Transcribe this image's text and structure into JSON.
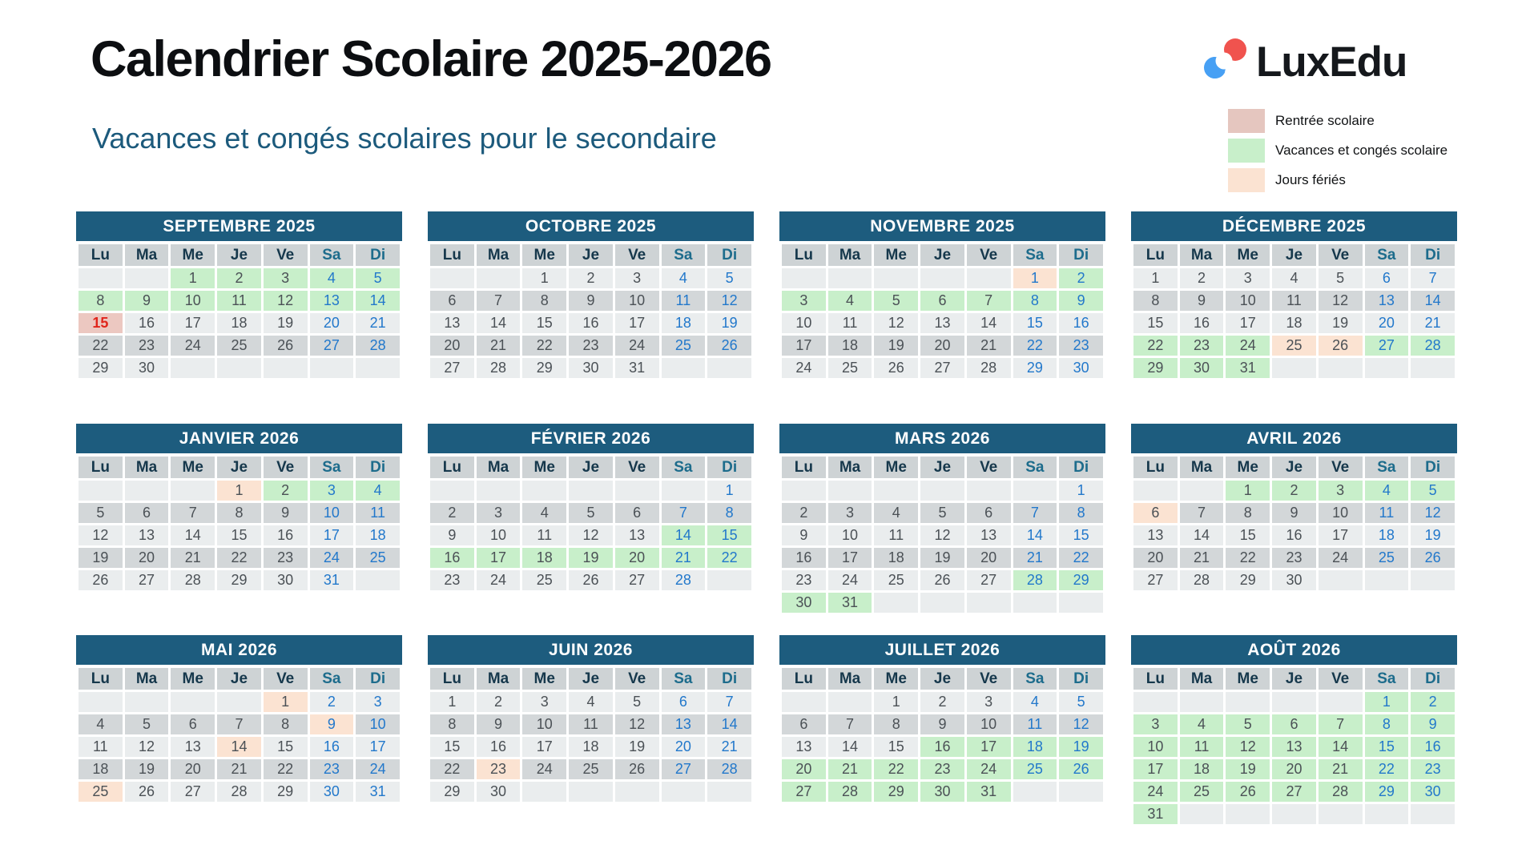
{
  "page": {
    "title": "Calendrier Scolaire 2025-2026",
    "subtitle": "Vacances et congés scolaires pour le secondaire",
    "brand": "LuxEdu"
  },
  "legend": [
    {
      "key": "rentree",
      "label": "Rentrée scolaire",
      "color": "#e5c6bf"
    },
    {
      "key": "vacances",
      "label": "Vacances et congés scolaire",
      "color": "#c8efca"
    },
    {
      "key": "ferie",
      "label": "Jours fériés",
      "color": "#fbe3d2"
    }
  ],
  "colors": {
    "month_header_bg": "#1d5c7e",
    "month_header_text": "#ffffff",
    "day_header_bg": "#ced3d5",
    "day_header_text": "#16384c",
    "day_header_weekend_text": "#1d6c8c",
    "row_light": "#eaedee",
    "row_dark": "#d3d7d9",
    "weekday_number": "#4b5156",
    "weekend_number": "#2278cb",
    "vacances_bg": "#c8efca",
    "ferie_bg": "#fbe3d2",
    "rentree_bg": "#ecc8c1",
    "rentree_text": "#e0251b",
    "subtitle_color": "#1c5a7c",
    "logo_red": "#f0534e",
    "logo_blue": "#47a0f4"
  },
  "day_headers": [
    "Lu",
    "Ma",
    "Me",
    "Je",
    "Ve",
    "Sa",
    "Di"
  ],
  "months": [
    {
      "name": "SEPTEMBRE 2025",
      "rows": [
        [
          "",
          "",
          "1v",
          "2v",
          "3v",
          "4v",
          "5v"
        ],
        [
          "8v",
          "9v",
          "10v",
          "11v",
          "12v",
          "13v",
          "14v"
        ],
        [
          "15r",
          "16",
          "17",
          "18",
          "19",
          "20",
          "21"
        ],
        [
          "22",
          "23",
          "24",
          "25",
          "26",
          "27",
          "28"
        ],
        [
          "29",
          "30",
          "",
          "",
          "",
          "",
          ""
        ]
      ]
    },
    {
      "name": "OCTOBRE 2025",
      "rows": [
        [
          "",
          "",
          "1",
          "2",
          "3",
          "4",
          "5"
        ],
        [
          "6",
          "7",
          "8",
          "9",
          "10",
          "11",
          "12"
        ],
        [
          "13",
          "14",
          "15",
          "16",
          "17",
          "18",
          "19"
        ],
        [
          "20",
          "21",
          "22",
          "23",
          "24",
          "25",
          "26"
        ],
        [
          "27",
          "28",
          "29",
          "30",
          "31",
          "",
          ""
        ]
      ]
    },
    {
      "name": "NOVEMBRE 2025",
      "rows": [
        [
          "",
          "",
          "",
          "",
          "",
          "1f",
          "2v"
        ],
        [
          "3v",
          "4v",
          "5v",
          "6v",
          "7v",
          "8v",
          "9v"
        ],
        [
          "10",
          "11",
          "12",
          "13",
          "14",
          "15",
          "16"
        ],
        [
          "17",
          "18",
          "19",
          "20",
          "21",
          "22",
          "23"
        ],
        [
          "24",
          "25",
          "26",
          "27",
          "28",
          "29",
          "30"
        ]
      ]
    },
    {
      "name": "DÉCEMBRE 2025",
      "rows": [
        [
          "1",
          "2",
          "3",
          "4",
          "5",
          "6",
          "7"
        ],
        [
          "8",
          "9",
          "10",
          "11",
          "12",
          "13",
          "14"
        ],
        [
          "15",
          "16",
          "17",
          "18",
          "19",
          "20",
          "21"
        ],
        [
          "22v",
          "23v",
          "24v",
          "25f",
          "26f",
          "27v",
          "28v"
        ],
        [
          "29v",
          "30v",
          "31v",
          "",
          "",
          "",
          ""
        ]
      ]
    },
    {
      "name": "JANVIER 2026",
      "rows": [
        [
          "",
          "",
          "",
          "1f",
          "2v",
          "3v",
          "4v"
        ],
        [
          "5",
          "6",
          "7",
          "8",
          "9",
          "10",
          "11"
        ],
        [
          "12",
          "13",
          "14",
          "15",
          "16",
          "17",
          "18"
        ],
        [
          "19",
          "20",
          "21",
          "22",
          "23",
          "24",
          "25"
        ],
        [
          "26",
          "27",
          "28",
          "29",
          "30",
          "31",
          ""
        ]
      ]
    },
    {
      "name": "FÉVRIER 2026",
      "rows": [
        [
          "",
          "",
          "",
          "",
          "",
          "",
          "1"
        ],
        [
          "2",
          "3",
          "4",
          "5",
          "6",
          "7",
          "8"
        ],
        [
          "9",
          "10",
          "11",
          "12",
          "13",
          "14v",
          "15v"
        ],
        [
          "16v",
          "17v",
          "18v",
          "19v",
          "20v",
          "21v",
          "22v"
        ],
        [
          "23",
          "24",
          "25",
          "26",
          "27",
          "28",
          ""
        ]
      ]
    },
    {
      "name": "MARS 2026",
      "rows": [
        [
          "",
          "",
          "",
          "",
          "",
          "",
          "1"
        ],
        [
          "2",
          "3",
          "4",
          "5",
          "6",
          "7",
          "8"
        ],
        [
          "9",
          "10",
          "11",
          "12",
          "13",
          "14",
          "15"
        ],
        [
          "16",
          "17",
          "18",
          "19",
          "20",
          "21",
          "22"
        ],
        [
          "23",
          "24",
          "25",
          "26",
          "27",
          "28v",
          "29v"
        ],
        [
          "30v",
          "31v",
          "",
          "",
          "",
          "",
          ""
        ]
      ]
    },
    {
      "name": "AVRIL 2026",
      "rows": [
        [
          "",
          "",
          "1v",
          "2v",
          "3v",
          "4v",
          "5v"
        ],
        [
          "6f",
          "7",
          "8",
          "9",
          "10",
          "11",
          "12"
        ],
        [
          "13",
          "14",
          "15",
          "16",
          "17",
          "18",
          "19"
        ],
        [
          "20",
          "21",
          "22",
          "23",
          "24",
          "25",
          "26"
        ],
        [
          "27",
          "28",
          "29",
          "30",
          "",
          "",
          ""
        ]
      ]
    },
    {
      "name": "MAI 2026",
      "rows": [
        [
          "",
          "",
          "",
          "",
          "1f",
          "2",
          "3"
        ],
        [
          "4",
          "5",
          "6",
          "7",
          "8",
          "9f",
          "10"
        ],
        [
          "11",
          "12",
          "13",
          "14f",
          "15",
          "16",
          "17"
        ],
        [
          "18",
          "19",
          "20",
          "21",
          "22",
          "23",
          "24"
        ],
        [
          "25f",
          "26",
          "27",
          "28",
          "29",
          "30",
          "31"
        ]
      ]
    },
    {
      "name": "JUIN 2026",
      "rows": [
        [
          "1",
          "2",
          "3",
          "4",
          "5",
          "6",
          "7"
        ],
        [
          "8",
          "9",
          "10",
          "11",
          "12",
          "13",
          "14"
        ],
        [
          "15",
          "16",
          "17",
          "18",
          "19",
          "20",
          "21"
        ],
        [
          "22",
          "23f",
          "24",
          "25",
          "26",
          "27",
          "28"
        ],
        [
          "29",
          "30",
          "",
          "",
          "",
          "",
          ""
        ]
      ]
    },
    {
      "name": "JUILLET 2026",
      "rows": [
        [
          "",
          "",
          "1",
          "2",
          "3",
          "4",
          "5"
        ],
        [
          "6",
          "7",
          "8",
          "9",
          "10",
          "11",
          "12"
        ],
        [
          "13",
          "14",
          "15",
          "16v",
          "17v",
          "18v",
          "19v"
        ],
        [
          "20v",
          "21v",
          "22v",
          "23v",
          "24v",
          "25v",
          "26v"
        ],
        [
          "27v",
          "28v",
          "29v",
          "30v",
          "31v",
          "",
          ""
        ]
      ]
    },
    {
      "name": "AOÛT 2026",
      "rows": [
        [
          "",
          "",
          "",
          "",
          "",
          "1v",
          "2v"
        ],
        [
          "3v",
          "4v",
          "5v",
          "6v",
          "7v",
          "8v",
          "9v"
        ],
        [
          "10v",
          "11v",
          "12v",
          "13v",
          "14v",
          "15v",
          "16v"
        ],
        [
          "17v",
          "18v",
          "19v",
          "20v",
          "21v",
          "22v",
          "23v"
        ],
        [
          "24v",
          "25v",
          "26v",
          "27v",
          "28v",
          "29v",
          "30v"
        ],
        [
          "31v",
          "",
          "",
          "",
          "",
          "",
          ""
        ]
      ]
    }
  ]
}
